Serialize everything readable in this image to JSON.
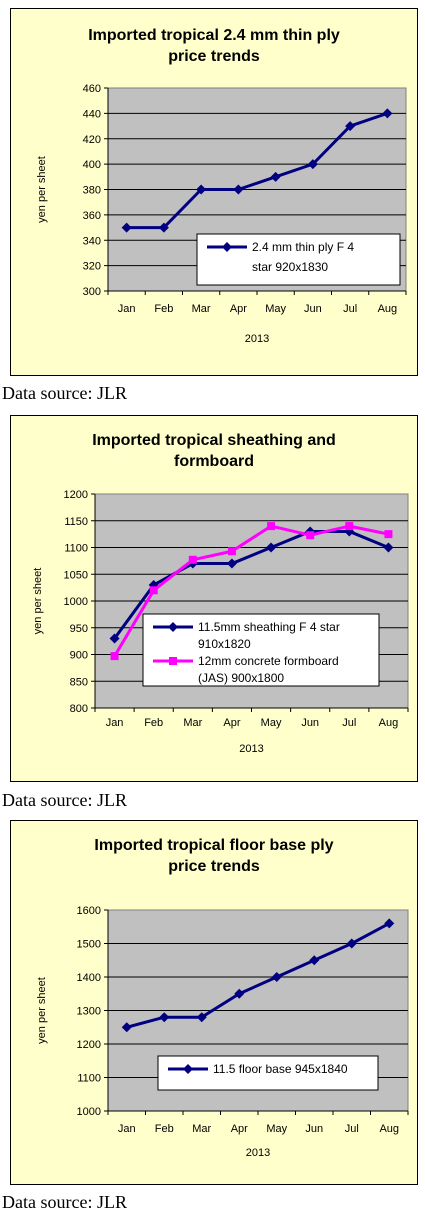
{
  "charts": [
    {
      "title_lines": [
        "Imported tropical 2.4 mm thin ply",
        "price trends"
      ],
      "source": "Data source: JLR",
      "chart_data": {
        "type": "line",
        "categories": [
          "Jan",
          "Feb",
          "Mar",
          "Apr",
          "May",
          "Jun",
          "Jul",
          "Aug"
        ],
        "xlabel": "2013",
        "ylabel": "yen per sheet",
        "ylim": [
          300,
          460
        ],
        "yticks": [
          300,
          320,
          340,
          360,
          380,
          400,
          420,
          440,
          460
        ],
        "grid": true,
        "legend": "bottom-right",
        "series": [
          {
            "legend_lines": [
              "2.4 mm thin ply F 4",
              "star 920x1830"
            ],
            "color": "#000080",
            "marker": "diamond",
            "values": [
              350,
              350,
              380,
              380,
              390,
              400,
              430,
              440
            ]
          }
        ]
      }
    },
    {
      "title_lines": [
        "Imported tropical sheathing and",
        "formboard"
      ],
      "source": "Data source: JLR",
      "chart_data": {
        "type": "line",
        "categories": [
          "Jan",
          "Feb",
          "Mar",
          "Apr",
          "May",
          "Jun",
          "Jul",
          "Aug"
        ],
        "xlabel": "2013",
        "ylabel": "yen per sheet",
        "ylim": [
          800,
          1200
        ],
        "yticks": [
          800,
          850,
          900,
          950,
          1000,
          1050,
          1100,
          1150,
          1200
        ],
        "grid": true,
        "legend": "bottom-right",
        "series": [
          {
            "legend_lines": [
              "11.5mm sheathing F 4 star",
              "910x1820"
            ],
            "color": "#000080",
            "marker": "diamond",
            "values": [
              930,
              1030,
              1070,
              1070,
              1100,
              1130,
              1130,
              1100
            ]
          },
          {
            "legend_lines": [
              "12mm concrete formboard",
              "(JAS) 900x1800"
            ],
            "color": "#ff00ff",
            "marker": "square",
            "values": [
              897,
              1020,
              1077,
              1093,
              1140,
              1123,
              1140,
              1125
            ]
          }
        ]
      }
    },
    {
      "title_lines": [
        "Imported tropical floor base ply",
        "price trends"
      ],
      "source": "Data source: JLR",
      "chart_data": {
        "type": "line",
        "categories": [
          "Jan",
          "Feb",
          "Mar",
          "Apr",
          "May",
          "Jun",
          "Jul",
          "Aug"
        ],
        "xlabel": "2013",
        "ylabel": "yen per sheet",
        "ylim": [
          1000,
          1600
        ],
        "yticks": [
          1000,
          1100,
          1200,
          1300,
          1400,
          1500,
          1600
        ],
        "grid": true,
        "legend": "bottom-right",
        "series": [
          {
            "legend_lines": [
              "11.5 floor base 945x1840"
            ],
            "color": "#000080",
            "marker": "diamond",
            "values": [
              1250,
              1280,
              1280,
              1350,
              1400,
              1450,
              1500,
              1560
            ]
          }
        ]
      }
    }
  ]
}
